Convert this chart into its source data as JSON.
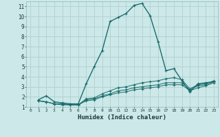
{
  "xlabel": "Humidex (Indice chaleur)",
  "xlim": [
    -0.5,
    23.5
  ],
  "ylim": [
    1,
    11.5
  ],
  "xticks": [
    0,
    1,
    2,
    3,
    4,
    5,
    6,
    7,
    8,
    9,
    10,
    11,
    12,
    13,
    14,
    15,
    16,
    17,
    18,
    19,
    20,
    21,
    22,
    23
  ],
  "yticks": [
    1,
    2,
    3,
    4,
    5,
    6,
    7,
    8,
    9,
    10,
    11
  ],
  "background_color": "#cce8e8",
  "grid_color": "#b0d0d0",
  "line_color": "#1a6b6b",
  "series": [
    {
      "x": [
        1,
        2,
        3,
        4,
        5,
        6,
        7,
        8,
        9,
        10,
        11,
        12,
        13,
        14,
        15,
        16,
        17,
        18,
        19,
        20,
        21,
        22,
        23
      ],
      "y": [
        1.7,
        2.1,
        1.5,
        1.4,
        1.3,
        1.3,
        3.3,
        5.0,
        6.6,
        9.5,
        9.9,
        10.3,
        11.1,
        11.3,
        10.1,
        7.5,
        4.6,
        4.8,
        3.6,
        2.5,
        3.3,
        3.4,
        3.5
      ]
    },
    {
      "x": [
        1,
        2,
        3,
        4,
        5,
        6,
        7,
        8,
        9,
        10,
        11,
        12,
        13,
        14,
        15,
        16,
        17,
        18,
        19,
        20,
        21,
        22,
        23
      ],
      "y": [
        1.6,
        1.5,
        1.3,
        1.3,
        1.2,
        1.2,
        1.8,
        1.9,
        2.3,
        2.6,
        2.9,
        3.0,
        3.2,
        3.4,
        3.5,
        3.6,
        3.8,
        3.9,
        3.7,
        2.8,
        3.2,
        3.3,
        3.6
      ]
    },
    {
      "x": [
        1,
        2,
        3,
        4,
        5,
        6,
        7,
        8,
        9,
        10,
        11,
        12,
        13,
        14,
        15,
        16,
        17,
        18,
        19,
        20,
        21,
        22,
        23
      ],
      "y": [
        1.6,
        1.5,
        1.3,
        1.3,
        1.2,
        1.2,
        1.7,
        1.8,
        2.1,
        2.3,
        2.6,
        2.7,
        2.9,
        3.0,
        3.1,
        3.2,
        3.4,
        3.4,
        3.4,
        2.7,
        3.1,
        3.2,
        3.5
      ]
    },
    {
      "x": [
        1,
        2,
        3,
        4,
        5,
        6,
        7,
        8,
        9,
        10,
        11,
        12,
        13,
        14,
        15,
        16,
        17,
        18,
        19,
        20,
        21,
        22,
        23
      ],
      "y": [
        1.6,
        1.5,
        1.3,
        1.2,
        1.2,
        1.2,
        1.6,
        1.7,
        2.0,
        2.2,
        2.4,
        2.5,
        2.7,
        2.8,
        2.9,
        3.0,
        3.2,
        3.2,
        3.2,
        2.6,
        2.9,
        3.1,
        3.4
      ]
    }
  ]
}
